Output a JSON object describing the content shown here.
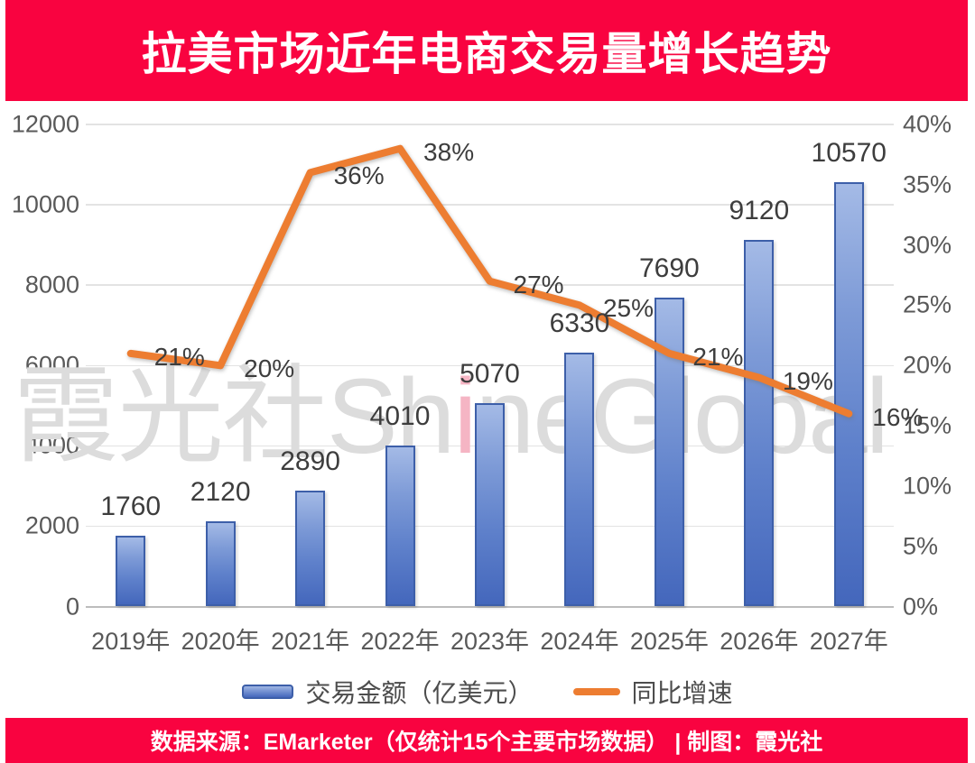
{
  "header": {
    "title": "拉美市场近年电商交易量增长趋势"
  },
  "footer": {
    "source_line": "数据来源：EMarketer（仅统计15个主要市场数据） | 制图：霞光社"
  },
  "watermark": {
    "prefix": "霞光社Sh",
    "accent": "i",
    "suffix": "neGlobal"
  },
  "colors": {
    "banner_red": "#F90340",
    "bar_gradient_top": "#A4BAE6",
    "bar_gradient_bottom": "#4467BC",
    "bar_border": "#3D5FA9",
    "line_orange": "#ED7D31",
    "axis_text": "#595959",
    "data_label_text": "#3D3D3D",
    "gridline": "#E3E3E3",
    "watermark_gray": "#DCDCDC",
    "watermark_accent_pink": "#F5B5C4"
  },
  "chart_data": {
    "type": "combo-bar-line",
    "title": "拉美市场近年电商交易量增长趋势",
    "categories": [
      "2019年",
      "2020年",
      "2021年",
      "2022年",
      "2023年",
      "2024年",
      "2025年",
      "2026年",
      "2027年"
    ],
    "series": [
      {
        "name": "交易金额（亿美元）",
        "type": "bar",
        "axis": "left",
        "values": [
          1760,
          2120,
          2890,
          4010,
          5070,
          6330,
          7690,
          9120,
          10570
        ],
        "value_labels": [
          "1760",
          "2120",
          "2890",
          "4010",
          "5070",
          "6330",
          "7690",
          "9120",
          "10570"
        ]
      },
      {
        "name": "同比增速",
        "type": "line",
        "axis": "right",
        "values": [
          21,
          20,
          36,
          38,
          27,
          25,
          21,
          19,
          16
        ],
        "value_labels": [
          "21%",
          "20%",
          "36%",
          "38%",
          "27%",
          "25%",
          "21%",
          "19%",
          "16%"
        ]
      }
    ],
    "left_axis": {
      "min": 0,
      "max": 12000,
      "step": 2000,
      "ticks": [
        "0",
        "2000",
        "4000",
        "6000",
        "8000",
        "10000",
        "12000"
      ]
    },
    "right_axis": {
      "min": 0,
      "max": 40,
      "step": 5,
      "ticks": [
        "0%",
        "5%",
        "10%",
        "15%",
        "20%",
        "25%",
        "30%",
        "35%",
        "40%"
      ]
    },
    "grid": "horizontal gridlines at left-axis steps",
    "legend_position": "bottom-center"
  }
}
